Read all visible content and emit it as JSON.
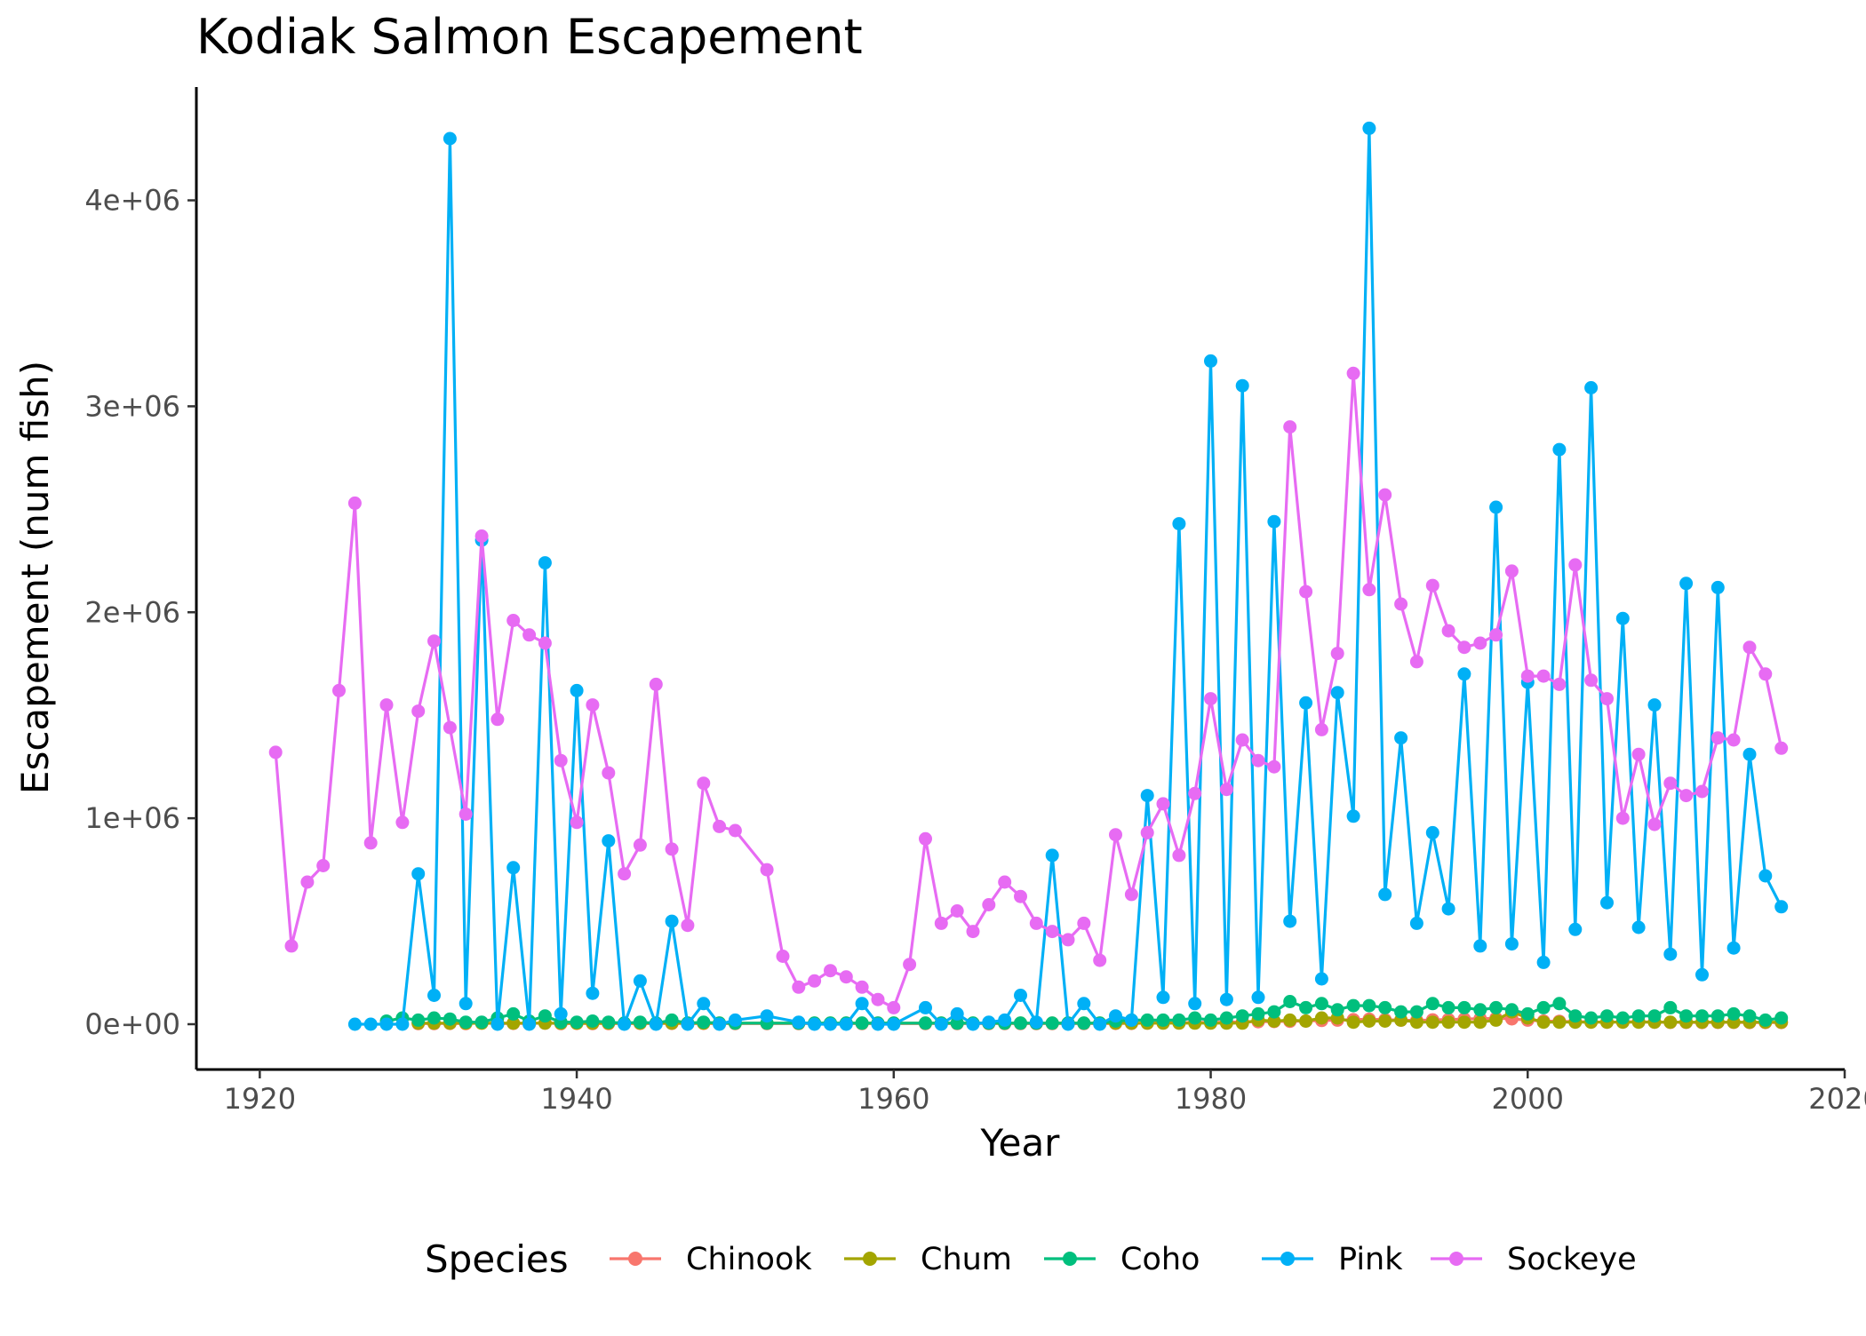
{
  "chart_data": {
    "type": "line",
    "title": "Kodiak Salmon Escapement",
    "xlabel": "Year",
    "ylabel": "Escapement (num fish)",
    "xlim": [
      1916,
      2020
    ],
    "ylim": [
      -220000,
      4550000
    ],
    "x_ticks": [
      1920,
      1940,
      1960,
      1980,
      2000,
      2020
    ],
    "x_tick_labels": [
      "1920",
      "1940",
      "1960",
      "1980",
      "2000",
      "2020"
    ],
    "y_ticks": [
      0,
      1000000,
      2000000,
      3000000,
      4000000
    ],
    "y_tick_labels": [
      "0e+00",
      "1e+06",
      "2e+06",
      "3e+06",
      "4e+06"
    ],
    "grid": false,
    "legend": {
      "title": "Species",
      "position": "bottom"
    },
    "series": [
      {
        "name": "Chinook",
        "color": "#F8766D",
        "x": [
          1930,
          1931,
          1932,
          1933,
          1934,
          1935,
          1936,
          1937,
          1938,
          1939,
          1940,
          1941,
          1942,
          1943,
          1944,
          1945,
          1946,
          1947,
          1948,
          1949,
          1950,
          1952,
          1954,
          1955,
          1956,
          1957,
          1958,
          1959,
          1960,
          1962,
          1963,
          1964,
          1965,
          1966,
          1967,
          1968,
          1969,
          1970,
          1971,
          1972,
          1973,
          1974,
          1975,
          1976,
          1977,
          1978,
          1979,
          1980,
          1981,
          1982,
          1983,
          1984,
          1985,
          1986,
          1987,
          1988,
          1989,
          1990,
          1991,
          1992,
          1993,
          1994,
          1995,
          1996,
          1997,
          1998,
          1999,
          2000,
          2001,
          2002,
          2003,
          2004,
          2005,
          2006,
          2007,
          2008,
          2009,
          2010,
          2011,
          2012,
          2013,
          2014,
          2015,
          2016
        ],
        "y": [
          3000,
          3000,
          4000,
          3000,
          5000,
          3000,
          4000,
          4000,
          5000,
          3000,
          4000,
          3000,
          3000,
          3000,
          4000,
          3000,
          4000,
          3000,
          4000,
          3000,
          3000,
          3000,
          3000,
          3000,
          3000,
          3000,
          3000,
          3000,
          3000,
          3000,
          3000,
          3000,
          3000,
          3000,
          3000,
          3000,
          3000,
          3000,
          3000,
          3000,
          3000,
          4000,
          4000,
          5000,
          6000,
          7000,
          8000,
          9000,
          10000,
          11000,
          12000,
          13000,
          14000,
          15000,
          18000,
          20000,
          22000,
          24000,
          22000,
          20000,
          18000,
          21000,
          23000,
          25000,
          27000,
          29000,
          26000,
          20000,
          15000,
          14000,
          12000,
          11000,
          10000,
          11000,
          12000,
          10000,
          9000,
          9000,
          8000,
          9000,
          9000,
          8000,
          8000,
          8000
        ]
      },
      {
        "name": "Chum",
        "color": "#A3A500",
        "x": [
          1930,
          1931,
          1932,
          1933,
          1934,
          1935,
          1936,
          1937,
          1938,
          1939,
          1940,
          1941,
          1942,
          1943,
          1944,
          1945,
          1946,
          1947,
          1948,
          1949,
          1950,
          1952,
          1954,
          1955,
          1956,
          1957,
          1958,
          1959,
          1960,
          1962,
          1963,
          1964,
          1965,
          1966,
          1967,
          1968,
          1969,
          1970,
          1971,
          1972,
          1973,
          1974,
          1975,
          1976,
          1977,
          1978,
          1979,
          1980,
          1981,
          1982,
          1983,
          1984,
          1985,
          1986,
          1987,
          1988,
          1989,
          1990,
          1991,
          1992,
          1993,
          1994,
          1995,
          1996,
          1997,
          1998,
          1999,
          2000,
          2001,
          2002,
          2003,
          2004,
          2005,
          2006,
          2007,
          2008,
          2009,
          2010,
          2011,
          2012,
          2013,
          2014,
          2015,
          2016
        ],
        "y": [
          5000,
          5000,
          5000,
          5000,
          5000,
          5000,
          5000,
          5000,
          5000,
          5000,
          5000,
          5000,
          5000,
          5000,
          5000,
          5000,
          5000,
          5000,
          5000,
          5000,
          5000,
          5000,
          5000,
          5000,
          5000,
          5000,
          5000,
          5000,
          5000,
          5000,
          5000,
          5000,
          5000,
          5000,
          5000,
          5000,
          5000,
          5000,
          5000,
          5000,
          5000,
          5000,
          5000,
          5000,
          5000,
          5000,
          5000,
          5000,
          5000,
          5000,
          20000,
          15000,
          20000,
          15000,
          30000,
          30000,
          10000,
          15000,
          15000,
          20000,
          10000,
          10000,
          10000,
          10000,
          10000,
          20000,
          60000,
          30000,
          10000,
          10000,
          10000,
          10000,
          10000,
          10000,
          10000,
          10000,
          10000,
          10000,
          10000,
          10000,
          10000,
          10000,
          10000,
          10000
        ]
      },
      {
        "name": "Coho",
        "color": "#00BF7D",
        "x": [
          1928,
          1929,
          1930,
          1931,
          1932,
          1933,
          1934,
          1935,
          1936,
          1937,
          1938,
          1939,
          1940,
          1941,
          1942,
          1943,
          1944,
          1945,
          1946,
          1947,
          1948,
          1949,
          1950,
          1952,
          1954,
          1955,
          1956,
          1957,
          1958,
          1959,
          1960,
          1962,
          1963,
          1964,
          1965,
          1966,
          1967,
          1968,
          1969,
          1970,
          1971,
          1972,
          1973,
          1974,
          1975,
          1976,
          1977,
          1978,
          1979,
          1980,
          1981,
          1982,
          1983,
          1984,
          1985,
          1986,
          1987,
          1988,
          1989,
          1990,
          1991,
          1992,
          1993,
          1994,
          1995,
          1996,
          1997,
          1998,
          1999,
          2000,
          2001,
          2002,
          2003,
          2004,
          2005,
          2006,
          2007,
          2008,
          2009,
          2010,
          2011,
          2012,
          2013,
          2014,
          2015,
          2016
        ],
        "y": [
          15000,
          30000,
          20000,
          30000,
          25000,
          10000,
          10000,
          30000,
          50000,
          15000,
          40000,
          10000,
          10000,
          15000,
          10000,
          5000,
          10000,
          5000,
          20000,
          5000,
          10000,
          5000,
          5000,
          5000,
          5000,
          5000,
          5000,
          5000,
          5000,
          5000,
          5000,
          5000,
          5000,
          5000,
          5000,
          5000,
          5000,
          5000,
          5000,
          5000,
          5000,
          5000,
          5000,
          15000,
          20000,
          20000,
          20000,
          20000,
          30000,
          20000,
          30000,
          40000,
          50000,
          60000,
          110000,
          80000,
          100000,
          70000,
          90000,
          90000,
          80000,
          60000,
          60000,
          100000,
          80000,
          80000,
          70000,
          80000,
          70000,
          50000,
          80000,
          100000,
          40000,
          30000,
          40000,
          30000,
          40000,
          40000,
          80000,
          40000,
          40000,
          40000,
          50000,
          40000,
          20000,
          30000
        ]
      },
      {
        "name": "Pink",
        "color": "#00B0F6",
        "x": [
          1926,
          1927,
          1928,
          1929,
          1930,
          1931,
          1932,
          1933,
          1934,
          1935,
          1936,
          1937,
          1938,
          1939,
          1940,
          1941,
          1942,
          1943,
          1944,
          1945,
          1946,
          1947,
          1948,
          1949,
          1950,
          1952,
          1954,
          1955,
          1956,
          1957,
          1958,
          1959,
          1960,
          1962,
          1963,
          1964,
          1965,
          1966,
          1967,
          1968,
          1969,
          1970,
          1971,
          1972,
          1973,
          1974,
          1975,
          1976,
          1977,
          1978,
          1979,
          1980,
          1981,
          1982,
          1983,
          1984,
          1985,
          1986,
          1987,
          1988,
          1989,
          1990,
          1991,
          1992,
          1993,
          1994,
          1995,
          1996,
          1997,
          1998,
          1999,
          2000,
          2001,
          2002,
          2003,
          2004,
          2005,
          2006,
          2007,
          2008,
          2009,
          2010,
          2011,
          2012,
          2013,
          2014,
          2015,
          2016
        ],
        "y": [
          0,
          0,
          0,
          0,
          730000,
          140000,
          4300000,
          100000,
          2350000,
          0,
          760000,
          0,
          2240000,
          50000,
          1620000,
          150000,
          890000,
          0,
          210000,
          0,
          500000,
          0,
          100000,
          0,
          20000,
          40000,
          10000,
          0,
          0,
          0,
          100000,
          0,
          0,
          80000,
          0,
          50000,
          0,
          10000,
          20000,
          140000,
          10000,
          820000,
          0,
          100000,
          0,
          40000,
          20000,
          1110000,
          130000,
          2430000,
          100000,
          3220000,
          120000,
          3100000,
          130000,
          2440000,
          500000,
          1560000,
          220000,
          1610000,
          1010000,
          4350000,
          630000,
          1390000,
          490000,
          930000,
          560000,
          1700000,
          380000,
          2510000,
          390000,
          1660000,
          300000,
          2790000,
          460000,
          3090000,
          590000,
          1970000,
          470000,
          1550000,
          340000,
          2140000,
          240000,
          2120000,
          370000,
          1310000,
          720000,
          570000
        ]
      },
      {
        "name": "Sockeye",
        "color": "#E76BF3",
        "x": [
          1921,
          1922,
          1923,
          1924,
          1925,
          1926,
          1927,
          1928,
          1929,
          1930,
          1931,
          1932,
          1933,
          1934,
          1935,
          1936,
          1937,
          1938,
          1939,
          1940,
          1941,
          1942,
          1943,
          1944,
          1945,
          1946,
          1947,
          1948,
          1949,
          1950,
          1952,
          1953,
          1954,
          1955,
          1956,
          1957,
          1958,
          1959,
          1960,
          1961,
          1962,
          1963,
          1964,
          1965,
          1966,
          1967,
          1968,
          1969,
          1970,
          1971,
          1972,
          1973,
          1974,
          1975,
          1976,
          1977,
          1978,
          1979,
          1980,
          1981,
          1982,
          1983,
          1984,
          1985,
          1986,
          1987,
          1988,
          1989,
          1990,
          1991,
          1992,
          1993,
          1994,
          1995,
          1996,
          1997,
          1998,
          1999,
          2000,
          2001,
          2002,
          2003,
          2004,
          2005,
          2006,
          2007,
          2008,
          2009,
          2010,
          2011,
          2012,
          2013,
          2014,
          2015,
          2016
        ],
        "y": [
          1320000,
          380000,
          690000,
          770000,
          1620000,
          2530000,
          880000,
          1550000,
          980000,
          1520000,
          1860000,
          1440000,
          1020000,
          2370000,
          1480000,
          1960000,
          1890000,
          1850000,
          1280000,
          980000,
          1550000,
          1220000,
          730000,
          870000,
          1650000,
          850000,
          480000,
          1170000,
          960000,
          940000,
          750000,
          330000,
          180000,
          210000,
          260000,
          230000,
          180000,
          120000,
          80000,
          290000,
          900000,
          490000,
          550000,
          450000,
          580000,
          690000,
          620000,
          490000,
          450000,
          410000,
          490000,
          310000,
          920000,
          630000,
          930000,
          1070000,
          820000,
          1120000,
          1580000,
          1140000,
          1380000,
          1280000,
          1250000,
          2900000,
          2100000,
          1430000,
          1800000,
          3160000,
          2110000,
          2570000,
          2040000,
          1760000,
          2130000,
          1910000,
          1830000,
          1850000,
          1890000,
          2200000,
          1690000,
          1690000,
          1650000,
          2230000,
          1670000,
          1580000,
          1000000,
          1310000,
          970000,
          1170000,
          1110000,
          1130000,
          1390000,
          1380000,
          1830000,
          1700000,
          1340000
        ]
      }
    ]
  }
}
